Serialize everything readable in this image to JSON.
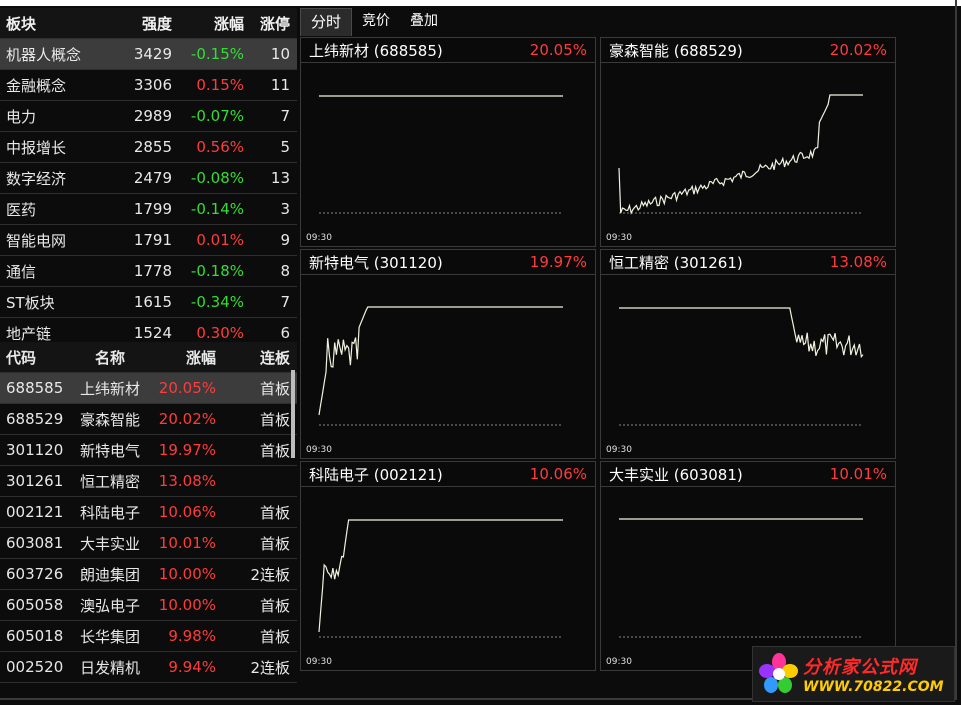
{
  "sector": {
    "headers": {
      "name": "板块",
      "strength": "强度",
      "change": "涨幅",
      "limit_up": "涨停"
    },
    "rows": [
      {
        "name": "机器人概念",
        "strength": "3429",
        "change": "-0.15%",
        "dir": "down",
        "limit_up": "10",
        "selected": true
      },
      {
        "name": "金融概念",
        "strength": "3306",
        "change": "0.15%",
        "dir": "up",
        "limit_up": "11"
      },
      {
        "name": "电力",
        "strength": "2989",
        "change": "-0.07%",
        "dir": "down",
        "limit_up": "7"
      },
      {
        "name": "中报增长",
        "strength": "2855",
        "change": "0.56%",
        "dir": "up",
        "limit_up": "5"
      },
      {
        "name": "数字经济",
        "strength": "2479",
        "change": "-0.08%",
        "dir": "down",
        "limit_up": "13"
      },
      {
        "name": "医药",
        "strength": "1799",
        "change": "-0.14%",
        "dir": "down",
        "limit_up": "3"
      },
      {
        "name": "智能电网",
        "strength": "1791",
        "change": "0.01%",
        "dir": "up",
        "limit_up": "9"
      },
      {
        "name": "通信",
        "strength": "1778",
        "change": "-0.18%",
        "dir": "down",
        "limit_up": "8"
      },
      {
        "name": "ST板块",
        "strength": "1615",
        "change": "-0.34%",
        "dir": "down",
        "limit_up": "7"
      },
      {
        "name": "地产链",
        "strength": "1524",
        "change": "0.30%",
        "dir": "up",
        "limit_up": "6"
      }
    ]
  },
  "stocks": {
    "headers": {
      "code": "代码",
      "name": "名称",
      "change": "涨幅",
      "board": "连板"
    },
    "rows": [
      {
        "code": "688585",
        "name": "上纬新材",
        "change": "20.05%",
        "board": "首板",
        "selected": true
      },
      {
        "code": "688529",
        "name": "豪森智能",
        "change": "20.02%",
        "board": "首板"
      },
      {
        "code": "301120",
        "name": "新特电气",
        "change": "19.97%",
        "board": "首板"
      },
      {
        "code": "301261",
        "name": "恒工精密",
        "change": "13.08%",
        "board": ""
      },
      {
        "code": "002121",
        "name": "科陆电子",
        "change": "10.06%",
        "board": "首板"
      },
      {
        "code": "603081",
        "name": "大丰实业",
        "change": "10.01%",
        "board": "首板"
      },
      {
        "code": "603726",
        "name": "朗迪集团",
        "change": "10.00%",
        "board": "2连板"
      },
      {
        "code": "605058",
        "name": "澳弘电子",
        "change": "10.00%",
        "board": "首板"
      },
      {
        "code": "605018",
        "name": "长华集团",
        "change": "9.98%",
        "board": "首板"
      },
      {
        "code": "002520",
        "name": "日发精机",
        "change": "9.94%",
        "board": "2连板"
      }
    ]
  },
  "tabs": [
    {
      "label": "分时",
      "active": true
    },
    {
      "label": "竞价"
    },
    {
      "label": "叠加"
    }
  ],
  "charts": [
    {
      "title": "上纬新材 (688585)",
      "change": "20.05%",
      "time": "09:30",
      "shape": "flat"
    },
    {
      "title": "豪森智能 (688529)",
      "change": "20.02%",
      "time": "09:30",
      "shape": "ramp"
    },
    {
      "title": "新特电气 (301120)",
      "change": "19.97%",
      "time": "09:30",
      "shape": "spike"
    },
    {
      "title": "恒工精密 (301261)",
      "change": "13.08%",
      "time": "09:30",
      "shape": "drop"
    },
    {
      "title": "科陆电子 (002121)",
      "change": "10.06%",
      "time": "09:30",
      "shape": "spike2"
    },
    {
      "title": "大丰实业 (603081)",
      "change": "10.01%",
      "time": "09:30",
      "shape": "flat_high"
    }
  ],
  "colors": {
    "up": "#ff3b3b",
    "down": "#33dd33",
    "line": "#ffffff"
  },
  "logo": {
    "name": "分析家公式网",
    "url": "WWW.70822.COM"
  }
}
